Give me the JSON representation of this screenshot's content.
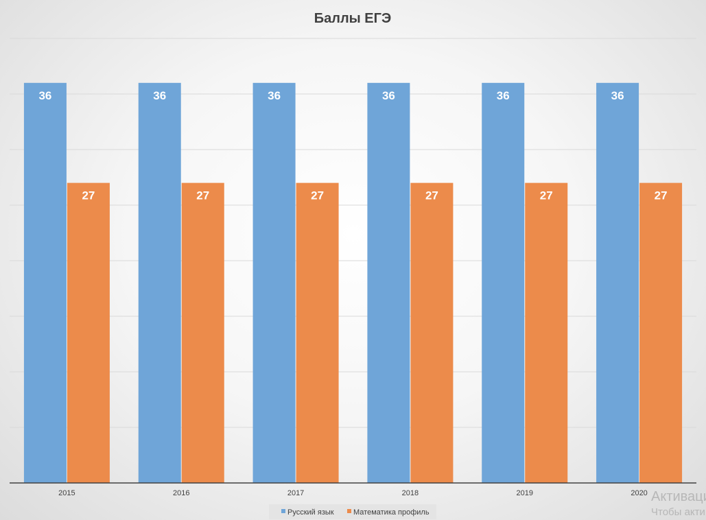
{
  "chart_data": {
    "type": "bar",
    "title": "Баллы ЕГЭ",
    "categories": [
      "2015",
      "2016",
      "2017",
      "2018",
      "2019",
      "2020"
    ],
    "series": [
      {
        "name": "Русский язык",
        "color": "#6fa5d8",
        "values": [
          36,
          36,
          36,
          36,
          36,
          36
        ]
      },
      {
        "name": "Математика профиль",
        "color": "#ec8b4b",
        "values": [
          27,
          27,
          27,
          27,
          27,
          27
        ]
      }
    ],
    "xlabel": "",
    "ylabel": "",
    "ylim": [
      0,
      40
    ],
    "y_gridline_step": 5,
    "grid": true,
    "legend_position": "bottom",
    "data_labels": true
  },
  "watermark": {
    "line1": "Активация",
    "line2": "Чтобы акти"
  }
}
